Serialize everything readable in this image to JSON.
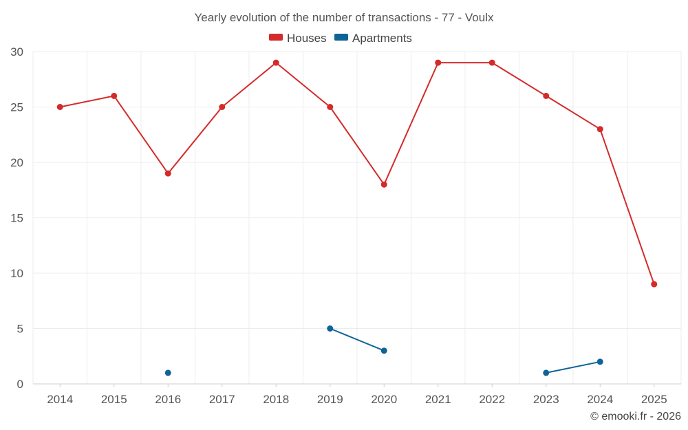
{
  "chart_data": {
    "type": "line",
    "title": "Yearly evolution of the number of transactions - 77 - Voulx",
    "categories": [
      "2014",
      "2015",
      "2016",
      "2017",
      "2018",
      "2019",
      "2020",
      "2021",
      "2022",
      "2023",
      "2024",
      "2025"
    ],
    "series": [
      {
        "name": "Houses",
        "color": "#d42a2a",
        "values": [
          25,
          26,
          19,
          25,
          29,
          25,
          18,
          29,
          29,
          26,
          23,
          9
        ]
      },
      {
        "name": "Apartments",
        "color": "#0f6496",
        "values": [
          null,
          null,
          1,
          null,
          null,
          5,
          3,
          null,
          null,
          1,
          2,
          null
        ]
      }
    ],
    "ylim": [
      0,
      30
    ],
    "yticks": [
      0,
      5,
      10,
      15,
      20,
      25,
      30
    ],
    "grid": true,
    "legend_position": "top-center"
  },
  "footer": {
    "copyright": "© emooki.fr - 2026"
  }
}
